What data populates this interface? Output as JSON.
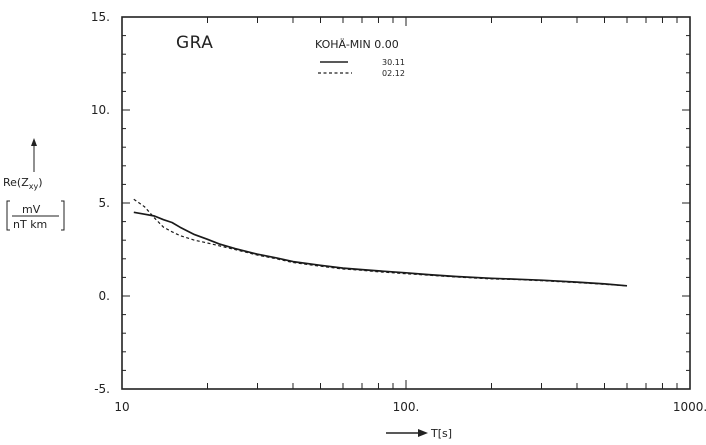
{
  "chart_data": {
    "type": "line",
    "title": "GRA",
    "subtitle": "KOHÄ-MIN 0.00",
    "xlabel": "T[s]",
    "ylabel": "Re(Z_xy)",
    "ylabel_sub": "xy",
    "units_top": "mV",
    "units_bottom": "nT km",
    "x_scale": "log",
    "xlim": [
      10,
      1000
    ],
    "ylim": [
      -5,
      15
    ],
    "x_ticks": [
      10,
      100,
      1000
    ],
    "x_tick_labels": [
      "10",
      "100.",
      "1000."
    ],
    "y_ticks": [
      -5,
      0,
      5,
      10,
      15
    ],
    "y_tick_labels": [
      "-5.",
      "0.",
      "5.",
      "10.",
      "15."
    ],
    "grid": false,
    "legend": "top-center",
    "series": [
      {
        "name": "30.11",
        "style": "solid",
        "x": [
          11,
          12,
          13,
          14,
          15,
          16,
          18,
          20,
          22,
          25,
          30,
          35,
          40,
          50,
          60,
          70,
          80,
          100,
          120,
          150,
          200,
          250,
          300,
          400,
          500,
          600
        ],
        "y": [
          4.5,
          4.4,
          4.3,
          4.1,
          3.95,
          3.7,
          3.3,
          3.05,
          2.8,
          2.55,
          2.25,
          2.05,
          1.85,
          1.65,
          1.5,
          1.42,
          1.35,
          1.25,
          1.15,
          1.05,
          0.95,
          0.9,
          0.85,
          0.75,
          0.65,
          0.55
        ]
      },
      {
        "name": "02.12",
        "style": "dashed",
        "x": [
          11,
          12,
          13,
          14,
          15,
          16,
          18,
          20,
          22,
          25,
          30,
          35,
          40,
          50,
          60,
          70,
          80,
          100,
          120,
          150,
          200,
          250,
          300,
          400,
          500,
          600
        ],
        "y": [
          5.2,
          4.8,
          4.2,
          3.7,
          3.45,
          3.25,
          3.0,
          2.85,
          2.7,
          2.5,
          2.2,
          2.0,
          1.8,
          1.6,
          1.45,
          1.38,
          1.3,
          1.2,
          1.12,
          1.02,
          0.92,
          0.88,
          0.82,
          0.72,
          0.63,
          0.55
        ]
      }
    ]
  }
}
